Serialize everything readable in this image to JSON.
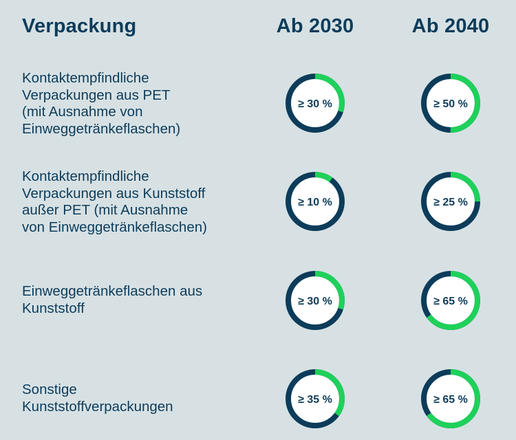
{
  "chart_data": {
    "type": "table",
    "title": "",
    "header": {
      "category": "Verpackung",
      "columns": [
        "Ab 2030",
        "Ab 2040"
      ]
    },
    "rows": [
      {
        "label": "Kontaktempfindliche\nVerpackungen aus PET\n(mit Ausnahme von\nEinweggetränkeflaschen)",
        "values": [
          30,
          50
        ],
        "value_labels": [
          "≥ 30 %",
          "≥ 50 %"
        ]
      },
      {
        "label": "Kontaktempfindliche\nVerpackungen aus Kunststoff\naußer PET (mit Ausnahme\nvon Einweggetränkeflaschen)",
        "values": [
          10,
          25
        ],
        "value_labels": [
          "≥ 10 %",
          "≥ 25 %"
        ]
      },
      {
        "label": "Einweggetränkeflaschen aus\nKunststoff",
        "values": [
          30,
          65
        ],
        "value_labels": [
          "≥ 30 %",
          "≥ 65 %"
        ]
      },
      {
        "label": "Sonstige\nKunststoffverpackungen",
        "values": [
          35,
          65
        ],
        "value_labels": [
          "≥ 35 %",
          "≥ 65 %"
        ]
      }
    ],
    "colors": {
      "background": "#d7e1e4",
      "ring_track": "#0d3c5a",
      "ring_fill": "#1ed15a",
      "inner": "#ffffff",
      "text": "#0d3c5a"
    }
  }
}
